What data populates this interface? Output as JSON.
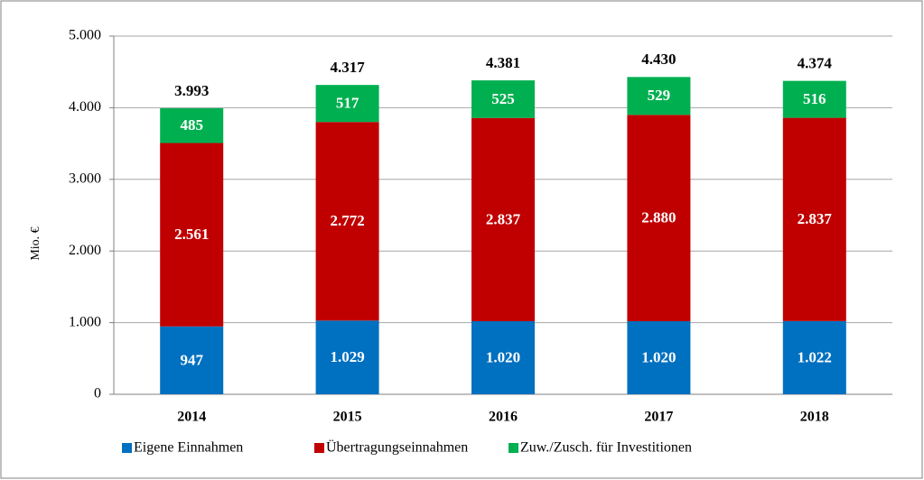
{
  "chart_data": {
    "type": "stacked-bar",
    "y_label": "Mio. €",
    "categories": [
      "2014",
      "2015",
      "2016",
      "2017",
      "2018"
    ],
    "series": [
      {
        "name": "Eigene Einnahmen",
        "color": "#0070c0",
        "values": [
          947,
          1029,
          1020,
          1020,
          1022
        ],
        "value_labels": [
          "947",
          "1.029",
          "1.020",
          "1.020",
          "1.022"
        ]
      },
      {
        "name": "Übertragungseinnahmen",
        "color": "#c00000",
        "values": [
          2561,
          2772,
          2837,
          2880,
          2837
        ],
        "value_labels": [
          "2.561",
          "2.772",
          "2.837",
          "2.880",
          "2.837"
        ]
      },
      {
        "name": "Zuw./Zusch. für Investitionen",
        "color": "#00b050",
        "values": [
          485,
          517,
          525,
          529,
          516
        ]
      }
    ],
    "totals": [
      {
        "value": 3993,
        "label": "3.993"
      },
      {
        "value": 4317,
        "label": "4.317"
      },
      {
        "value": 4381,
        "label": "4.381"
      },
      {
        "value": 4430,
        "label": "4.430"
      },
      {
        "value": 4374,
        "label": "4.374"
      }
    ],
    "ylim": [
      0,
      5000
    ],
    "yticks": [
      0,
      {
        "value": 1000,
        "label": "1.000"
      },
      {
        "value": 2000,
        "label": "2.000"
      },
      {
        "value": 3000,
        "label": "3.000"
      },
      {
        "value": 4000,
        "label": "4.000"
      },
      {
        "value": 5000,
        "label": "5.000"
      }
    ],
    "grid": true,
    "legend": "bottom"
  }
}
